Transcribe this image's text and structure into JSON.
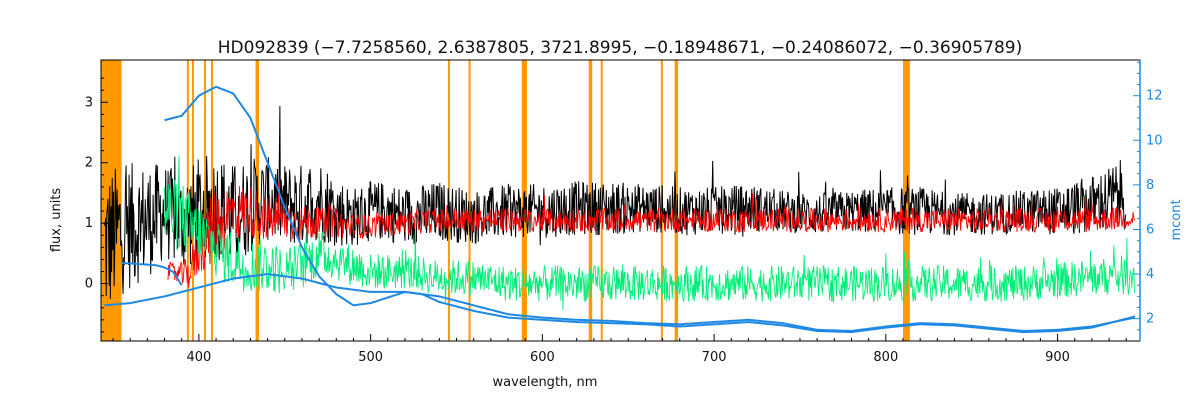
{
  "chart_data": {
    "type": "line",
    "title": "HD092839   (−7.7258560, 2.6387805, 3721.8995, −0.18948671, −0.24086072, −0.36905789)",
    "xlabel": "wavelength, nm",
    "ylabel": "flux, units",
    "y2label": "mcont",
    "xlim": [
      343,
      948
    ],
    "ylim": [
      -0.95,
      3.7
    ],
    "y2lim": [
      1.0,
      13.6
    ],
    "x_ticks": [
      400,
      500,
      600,
      700,
      800,
      900
    ],
    "y_ticks": [
      0,
      1,
      2,
      3
    ],
    "y2_ticks": [
      2,
      4,
      6,
      8,
      10,
      12
    ],
    "grid": false,
    "colors": {
      "observed": "#000000",
      "model": "#ff0000",
      "residual": "#00ee77",
      "mcont": "#1e88e5",
      "masked": "#ff9900"
    },
    "masked_regions": [
      [
        343,
        355
      ],
      [
        393,
        394
      ],
      [
        396,
        397
      ],
      [
        403,
        404
      ],
      [
        407,
        408
      ],
      [
        433,
        435
      ],
      [
        545,
        546
      ],
      [
        557,
        558
      ],
      [
        588,
        591
      ],
      [
        627,
        629
      ],
      [
        634,
        635
      ],
      [
        669,
        670
      ],
      [
        677,
        679
      ],
      [
        810,
        814
      ]
    ],
    "series": [
      {
        "key": "observed",
        "axis": "left",
        "x": [
          345,
          355,
          365,
          375,
          380,
          390,
          400,
          410,
          420,
          430,
          440,
          450,
          460,
          470,
          480,
          490,
          500,
          510,
          520,
          540,
          560,
          580,
          600,
          620,
          640,
          660,
          680,
          700,
          720,
          740,
          760,
          780,
          800,
          820,
          840,
          860,
          880,
          900,
          920,
          940
        ],
        "y": [
          0.6,
          0.9,
          1.0,
          1.1,
          1.2,
          1.0,
          1.2,
          1.3,
          1.1,
          1.3,
          1.4,
          1.3,
          1.3,
          1.4,
          1.2,
          1.1,
          1.2,
          1.2,
          1.1,
          1.2,
          1.1,
          1.2,
          1.2,
          1.25,
          1.25,
          1.25,
          1.2,
          1.2,
          1.25,
          1.2,
          1.15,
          1.2,
          1.2,
          1.2,
          1.15,
          1.15,
          1.2,
          1.2,
          1.3,
          1.5
        ],
        "noise": [
          1.3,
          1.1,
          1.0,
          0.9,
          0.8,
          0.8,
          0.9,
          0.9,
          0.9,
          0.8,
          0.7,
          0.7,
          0.7,
          0.7,
          0.6,
          0.5,
          0.5,
          0.5,
          0.5,
          0.5,
          0.45,
          0.45,
          0.45,
          0.45,
          0.45,
          0.4,
          0.4,
          0.4,
          0.4,
          0.35,
          0.35,
          0.35,
          0.4,
          0.4,
          0.35,
          0.35,
          0.35,
          0.4,
          0.5,
          0.6
        ]
      },
      {
        "key": "model",
        "axis": "left",
        "x": [
          382,
          390,
          395,
          400,
          410,
          420,
          430,
          440,
          450,
          460,
          470,
          480,
          490,
          500,
          520,
          540,
          560,
          580,
          600,
          620,
          640,
          660,
          680,
          700,
          720,
          740,
          760,
          780,
          800,
          820,
          840,
          860,
          880,
          900,
          920,
          945
        ],
        "y": [
          0.2,
          0.15,
          0.2,
          0.6,
          1.0,
          1.2,
          1.2,
          1.1,
          1.05,
          1.0,
          1.0,
          1.0,
          0.95,
          0.95,
          1.0,
          1.05,
          1.05,
          1.05,
          1.05,
          1.05,
          1.05,
          1.05,
          1.05,
          1.05,
          1.05,
          1.05,
          1.05,
          1.05,
          1.05,
          1.05,
          1.05,
          1.05,
          1.05,
          1.05,
          1.05,
          1.1
        ],
        "noise": [
          0.15,
          0.2,
          0.3,
          0.5,
          0.6,
          0.5,
          0.45,
          0.4,
          0.35,
          0.3,
          0.25,
          0.25,
          0.2,
          0.2,
          0.2,
          0.2,
          0.2,
          0.2,
          0.2,
          0.2,
          0.2,
          0.2,
          0.2,
          0.2,
          0.2,
          0.2,
          0.2,
          0.2,
          0.2,
          0.2,
          0.2,
          0.2,
          0.2,
          0.2,
          0.2,
          0.2
        ]
      },
      {
        "key": "residual",
        "axis": "left",
        "x": [
          380,
          390,
          400,
          410,
          420,
          430,
          440,
          450,
          460,
          470,
          480,
          490,
          500,
          510,
          520,
          540,
          560,
          580,
          600,
          620,
          640,
          660,
          680,
          700,
          720,
          740,
          760,
          780,
          800,
          820,
          840,
          860,
          880,
          900,
          920,
          945
        ],
        "y": [
          1.2,
          1.1,
          0.8,
          0.6,
          0.4,
          0.3,
          0.3,
          0.2,
          0.3,
          0.5,
          0.4,
          0.3,
          0.2,
          0.2,
          0.2,
          0.1,
          0.1,
          0.0,
          0.0,
          0.0,
          0.0,
          0.0,
          0.0,
          0.0,
          0.0,
          0.0,
          0.0,
          0.0,
          0.0,
          0.0,
          0.0,
          0.0,
          0.0,
          0.05,
          0.1,
          0.15
        ],
        "noise": [
          0.6,
          0.6,
          0.55,
          0.5,
          0.5,
          0.45,
          0.45,
          0.4,
          0.4,
          0.4,
          0.35,
          0.35,
          0.3,
          0.3,
          0.3,
          0.3,
          0.3,
          0.3,
          0.3,
          0.3,
          0.3,
          0.3,
          0.3,
          0.3,
          0.3,
          0.3,
          0.3,
          0.3,
          0.3,
          0.3,
          0.3,
          0.3,
          0.3,
          0.3,
          0.3,
          0.35
        ]
      },
      {
        "key": "mcont",
        "axis": "right",
        "x": [
          380,
          390,
          400,
          410,
          420,
          430,
          440,
          450,
          460,
          470,
          480,
          490,
          500,
          510,
          520,
          530,
          540,
          560,
          580,
          600,
          620,
          640,
          660,
          680,
          700,
          720,
          740,
          760,
          780,
          800,
          820,
          840,
          860,
          880,
          900,
          920,
          945
        ],
        "y": [
          10.9,
          11.1,
          12.0,
          12.4,
          12.1,
          11.0,
          9.0,
          7.0,
          5.2,
          3.9,
          3.1,
          2.6,
          2.7,
          2.95,
          3.2,
          3.1,
          2.75,
          2.35,
          2.05,
          1.95,
          1.85,
          1.8,
          1.75,
          1.65,
          1.75,
          1.85,
          1.7,
          1.45,
          1.4,
          1.6,
          1.75,
          1.7,
          1.55,
          1.4,
          1.45,
          1.6,
          2.1
        ]
      },
      {
        "key": "mcont_lower",
        "axis": "right",
        "x": [
          345,
          360,
          380,
          400,
          420,
          440,
          460,
          480,
          500,
          520,
          540,
          560,
          580,
          600,
          620,
          640,
          660,
          680,
          700,
          720,
          740,
          760,
          780,
          800,
          820,
          840,
          860,
          880,
          900,
          920,
          945
        ],
        "y": [
          2.6,
          2.7,
          3.0,
          3.4,
          3.8,
          4.0,
          3.8,
          3.4,
          3.2,
          3.2,
          3.0,
          2.6,
          2.2,
          2.05,
          1.95,
          1.9,
          1.8,
          1.75,
          1.85,
          1.95,
          1.8,
          1.5,
          1.45,
          1.65,
          1.8,
          1.75,
          1.6,
          1.45,
          1.5,
          1.65,
          2.05
        ]
      },
      {
        "key": "mcont_blue_edge",
        "axis": "right",
        "x": [
          355,
          365,
          375,
          380,
          385,
          390
        ],
        "y": [
          4.5,
          4.45,
          4.4,
          4.3,
          4.1,
          3.5
        ]
      }
    ]
  }
}
